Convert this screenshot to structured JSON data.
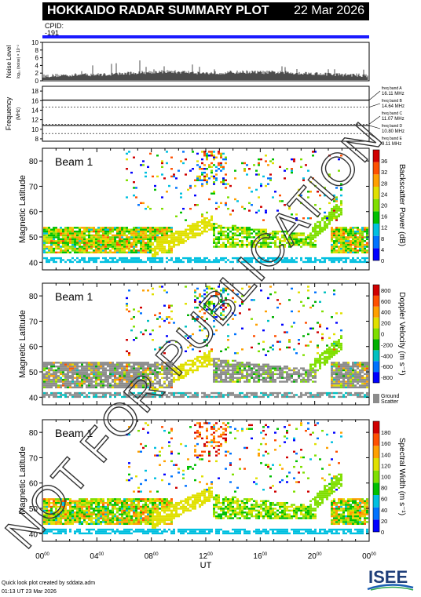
{
  "header": {
    "title": "HOKKAIDO RADAR SUMMARY PLOT",
    "date": "22 Mar 2026",
    "cpid_label": "CPID:",
    "cpid_value": "-191"
  },
  "watermark": "NOT FOR PUBLICATION",
  "footer": {
    "credit": "Quick look plot created by sddata.adm",
    "timestamp": "01:13 UT 23 Mar 2026",
    "logo_text": "ISEE"
  },
  "colors": {
    "cpid_bar": "#1a1aff",
    "ground_scatter": "#8c8c8c",
    "power_scale": [
      "#0000ff",
      "#0073ff",
      "#00c0e0",
      "#00c000",
      "#7fdf00",
      "#e0e000",
      "#ffa000",
      "#ff5000",
      "#d00000"
    ],
    "velocity_scale": [
      "#0000ff",
      "#0073ff",
      "#00c0c0",
      "#00b000",
      "#7fdf00",
      "#e0e000",
      "#ffa000",
      "#ff5000",
      "#d00000"
    ],
    "width_scale": [
      "#0000ff",
      "#0073ff",
      "#00c0e0",
      "#00c000",
      "#7fdf00",
      "#e0e000",
      "#ffa000",
      "#ff5000",
      "#d00000"
    ]
  },
  "chart_data": [
    {
      "type": "line",
      "name": "noise",
      "ylabel": "Noise Level",
      "ylabel_sub": "log₁₀ (noise) × 10⁻²",
      "yticks": [
        "0",
        "2",
        "4",
        "6",
        "8",
        "10"
      ],
      "ylim": [
        0,
        10
      ],
      "x": [
        0,
        1,
        2,
        3,
        4,
        5,
        6,
        7,
        8,
        9,
        10,
        11,
        12,
        13,
        14,
        15,
        16,
        17,
        18,
        19,
        20,
        21,
        22,
        23,
        24
      ],
      "y": [
        1.2,
        1.4,
        1.5,
        1.6,
        1.6,
        1.7,
        1.9,
        2.1,
        2.3,
        2.4,
        2.3,
        2.2,
        2.0,
        2.1,
        2.2,
        2.3,
        2.2,
        2.2,
        2.1,
        2.0,
        1.9,
        1.7,
        1.6,
        1.5,
        1.3
      ]
    },
    {
      "type": "line",
      "name": "frequency",
      "ylabel": "Frequency",
      "ylabel_sub": "(MHz)",
      "yticks": [
        "8",
        "10",
        "12",
        "14",
        "16",
        "18"
      ],
      "ylim": [
        7.5,
        19
      ],
      "series": [
        {
          "values": [
            10.8,
            16.1
          ]
        }
      ],
      "bands": [
        {
          "label": "freq band A",
          "value": "16.11 MHz",
          "freq": 16.11
        },
        {
          "label": "freq band B",
          "value": "14.64 MHz",
          "freq": 14.64
        },
        {
          "label": "freq band C",
          "value": "11.07 MHz",
          "freq": 11.07
        },
        {
          "label": "freq band D",
          "value": "10.80 MHz",
          "freq": 10.8
        },
        {
          "label": "freq band E",
          "value": "9.11 MHz",
          "freq": 9.11
        }
      ]
    },
    {
      "type": "heatmap",
      "name": "backscatter-power",
      "beam": "Beam  1",
      "ylabel": "Magnetic Latitude",
      "yticks": [
        "40",
        "50",
        "60",
        "70",
        "80"
      ],
      "ylim": [
        37,
        85
      ],
      "colorbar_title": "Backscatter Power (dB)",
      "colorbar_ticks": [
        "0",
        "4",
        "8",
        "12",
        "16",
        "20",
        "24",
        "28",
        "32",
        "36"
      ],
      "show_ground_scatter": false
    },
    {
      "type": "heatmap",
      "name": "doppler-velocity",
      "beam": "Beam  1",
      "ylabel": "Magnetic Latitude",
      "yticks": [
        "40",
        "50",
        "60",
        "70",
        "80"
      ],
      "ylim": [
        37,
        85
      ],
      "colorbar_title": "Doppler Velocity (m s⁻¹)",
      "colorbar_ticks": [
        "-800",
        "-600",
        "-400",
        "-200",
        "0",
        "200",
        "400",
        "600",
        "800"
      ],
      "show_ground_scatter": true,
      "ground_label": [
        "Ground",
        "Scatter"
      ]
    },
    {
      "type": "heatmap",
      "name": "spectral-width",
      "beam": "Beam  1",
      "ylabel": "Magnetic Latitude",
      "yticks": [
        "40",
        "50",
        "60",
        "70",
        "80"
      ],
      "ylim": [
        37,
        85
      ],
      "colorbar_title": "Spectral Width (m s⁻¹)",
      "colorbar_ticks": [
        "0",
        "20",
        "40",
        "60",
        "80",
        "100",
        "120",
        "140",
        "160",
        "180"
      ],
      "show_ground_scatter": false
    }
  ],
  "xaxis": {
    "label": "UT",
    "ticks": [
      {
        "h": "00",
        "m": "00"
      },
      {
        "h": "04",
        "m": "00"
      },
      {
        "h": "08",
        "m": "00"
      },
      {
        "h": "12",
        "m": "00"
      },
      {
        "h": "16",
        "m": "00"
      },
      {
        "h": "20",
        "m": "00"
      },
      {
        "h": "00",
        "m": "00"
      }
    ]
  }
}
